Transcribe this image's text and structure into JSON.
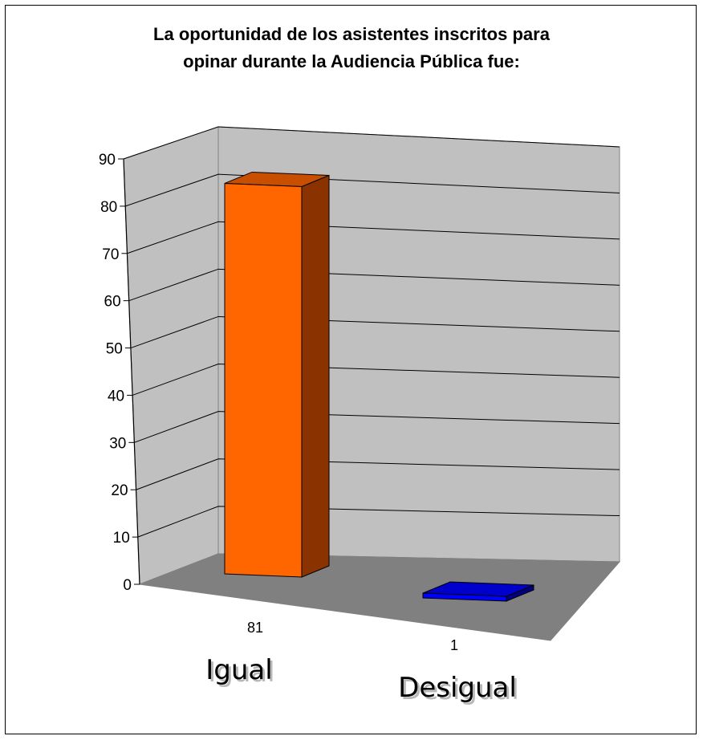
{
  "chart_data": {
    "type": "bar",
    "title": "La oportunidad de los asistentes inscritos para opinar durante la Audiencia Pública fue:",
    "title_lines": [
      "La oportunidad de los asistentes inscritos para",
      "opinar durante la Audiencia Pública fue:"
    ],
    "categories": [
      "Igual",
      "Desigual"
    ],
    "values": [
      81,
      1
    ],
    "data_labels": [
      "81",
      "1"
    ],
    "colors": [
      "#ff6600",
      "#0000ff"
    ],
    "xlabel": "",
    "ylabel": "",
    "ylim": [
      0,
      90
    ],
    "yticks": [
      "0",
      "10",
      "20",
      "30",
      "40",
      "50",
      "60",
      "70",
      "80",
      "90"
    ],
    "grid": true,
    "legend": "none",
    "style": "3d-column"
  }
}
